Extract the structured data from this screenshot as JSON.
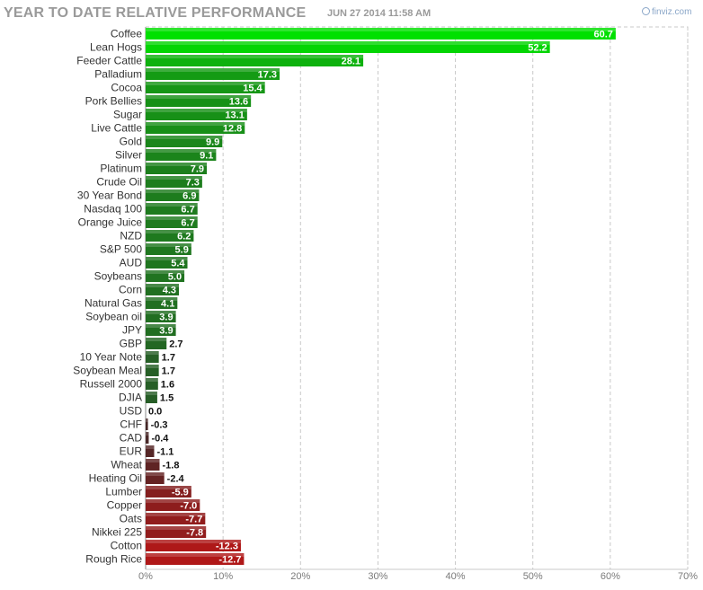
{
  "header": {
    "title": "YEAR TO DATE RELATIVE PERFORMANCE",
    "timestamp": "JUN 27 2014 11:58 AM",
    "brand": "finviz.com"
  },
  "chart_data": {
    "type": "bar",
    "orientation": "horizontal",
    "title": "YEAR TO DATE RELATIVE PERFORMANCE",
    "xlabel": "",
    "ylabel": "",
    "xlim": [
      0,
      70
    ],
    "tick_labels": [
      "0%",
      "10%",
      "20%",
      "30%",
      "40%",
      "50%",
      "60%",
      "70%"
    ],
    "grid": true,
    "categories": [
      "Coffee",
      "Lean Hogs",
      "Feeder Cattle",
      "Palladium",
      "Cocoa",
      "Pork Bellies",
      "Sugar",
      "Live Cattle",
      "Gold",
      "Silver",
      "Platinum",
      "Crude Oil",
      "30 Year Bond",
      "Nasdaq 100",
      "Orange Juice",
      "NZD",
      "S&P 500",
      "AUD",
      "Soybeans",
      "Corn",
      "Natural Gas",
      "Soybean oil",
      "JPY",
      "GBP",
      "10 Year Note",
      "Soybean Meal",
      "Russell 2000",
      "DJIA",
      "USD",
      "CHF",
      "CAD",
      "EUR",
      "Wheat",
      "Heating Oil",
      "Lumber",
      "Copper",
      "Oats",
      "Nikkei 225",
      "Cotton",
      "Rough Rice"
    ],
    "values": [
      60.7,
      52.2,
      28.1,
      17.3,
      15.4,
      13.6,
      13.1,
      12.8,
      9.9,
      9.1,
      7.9,
      7.3,
      6.9,
      6.7,
      6.7,
      6.2,
      5.9,
      5.4,
      5.0,
      4.3,
      4.1,
      3.9,
      3.9,
      2.7,
      1.7,
      1.7,
      1.6,
      1.5,
      0.0,
      -0.3,
      -0.4,
      -1.1,
      -1.8,
      -2.4,
      -5.9,
      -7.0,
      -7.7,
      -7.8,
      -12.3,
      -12.7
    ],
    "value_labels": [
      "60.7",
      "52.2",
      "28.1",
      "17.3",
      "15.4",
      "13.6",
      "13.1",
      "12.8",
      "9.9",
      "9.1",
      "7.9",
      "7.3",
      "6.9",
      "6.7",
      "6.7",
      "6.2",
      "5.9",
      "5.4",
      "5.0",
      "4.3",
      "4.1",
      "3.9",
      "3.9",
      "2.7",
      "1.7",
      "1.7",
      "1.6",
      "1.5",
      "0.0",
      "-0.3",
      "-0.4",
      "-1.1",
      "-1.8",
      "-2.4",
      "-5.9",
      "-7.0",
      "-7.7",
      "-7.8",
      "-12.3",
      "-12.7"
    ],
    "colors": {
      "strong_positive": "#00e000",
      "weak_positive": "#2f3f2f",
      "weak_negative": "#3a2a2a",
      "strong_negative": "#b01818",
      "grid": "#c8c8c8",
      "axis": "#888888"
    }
  }
}
